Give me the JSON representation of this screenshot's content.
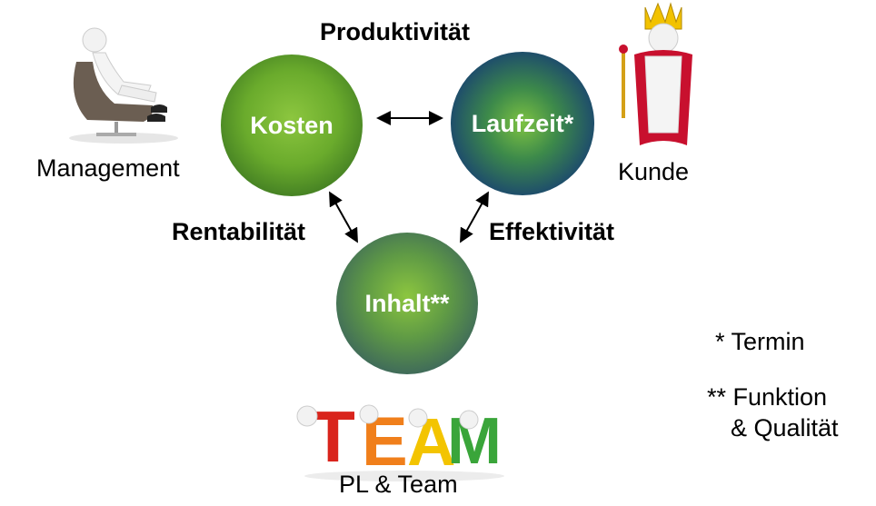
{
  "nodes": {
    "kosten": "Kosten",
    "laufzeit": "Laufzeit*",
    "inhalt": "Inhalt**"
  },
  "relations": {
    "top": "Produktivität",
    "left": "Rentabilität",
    "right": "Effektivität"
  },
  "actors": {
    "management": "Management",
    "kunde": "Kunde",
    "team": "PL & Team",
    "team_letters": [
      "T",
      "E",
      "A",
      "M"
    ]
  },
  "footnotes": {
    "termin": "* Termin",
    "funktion_line1": "** Funktion",
    "funktion_line2": "& Qualität"
  }
}
